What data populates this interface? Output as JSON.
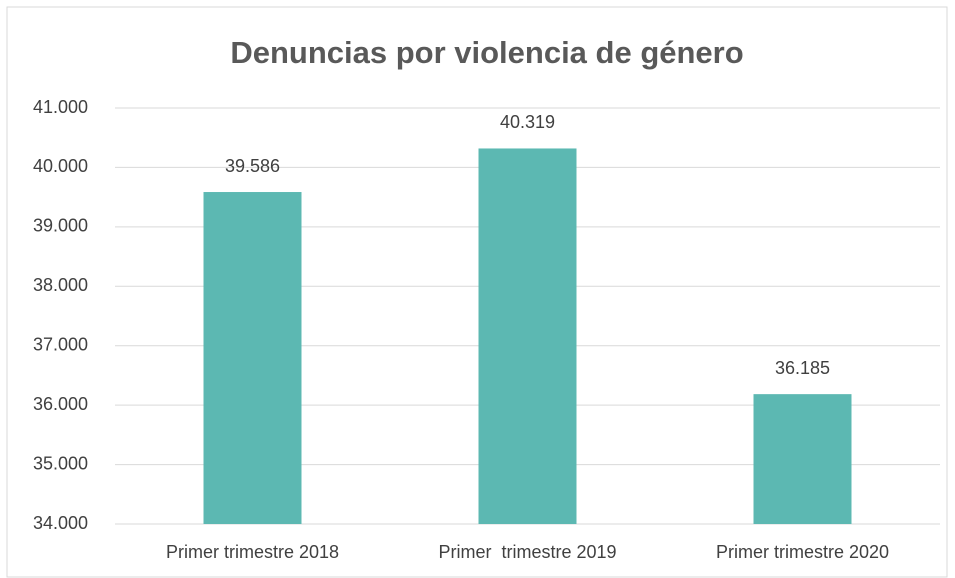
{
  "chart_data": {
    "type": "bar",
    "title": "Denuncias por violencia de género",
    "categories": [
      "Primer trimestre 2018",
      "Primer  trimestre 2019",
      "Primer trimestre 2020"
    ],
    "values": [
      39586,
      40319,
      36185
    ],
    "value_labels": [
      "39.586",
      "40.319",
      "36.185"
    ],
    "color": "#5cb8b2",
    "ylim": [
      34000,
      41000
    ],
    "yticks": [
      {
        "value": 34000,
        "label": "34.000"
      },
      {
        "value": 35000,
        "label": "35.000"
      },
      {
        "value": 36000,
        "label": "36.000"
      },
      {
        "value": 37000,
        "label": "37.000"
      },
      {
        "value": 38000,
        "label": "38.000"
      },
      {
        "value": 39000,
        "label": "39.000"
      },
      {
        "value": 40000,
        "label": "40.000"
      },
      {
        "value": 41000,
        "label": "41.000"
      }
    ],
    "grid": true
  }
}
